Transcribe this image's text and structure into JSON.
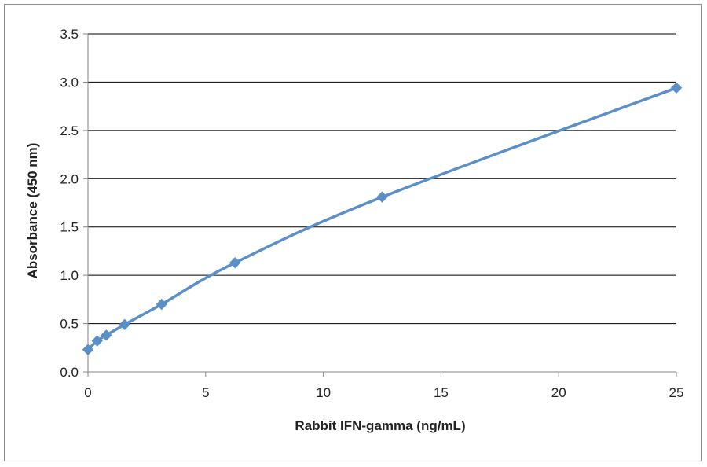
{
  "chart_data": {
    "type": "line",
    "title": "",
    "xlabel": "Rabbit IFN-gamma (ng/mL)",
    "ylabel": "Absorbance  (450 nm)",
    "xlim": [
      0,
      25
    ],
    "ylim": [
      0,
      3.5
    ],
    "x_ticks": [
      0,
      5,
      10,
      15,
      20,
      25
    ],
    "y_ticks": [
      0.0,
      0.5,
      1.0,
      1.5,
      2.0,
      2.5,
      3.0,
      3.5
    ],
    "x_tick_labels": [
      "0",
      "5",
      "10",
      "15",
      "20",
      "25"
    ],
    "y_tick_labels": [
      "0.0",
      "0.5",
      "1.0",
      "1.5",
      "2.0",
      "2.5",
      "3.0",
      "3.5"
    ],
    "grid": "horizontal",
    "legend": "none",
    "marker": "diamond",
    "line_style": "smooth",
    "series": [
      {
        "x": [
          0,
          0.39,
          0.78,
          1.56,
          3.13,
          6.25,
          12.5,
          25
        ],
        "y": [
          0.23,
          0.32,
          0.38,
          0.49,
          0.7,
          1.13,
          1.81,
          2.94
        ],
        "color": "#5b8fc7"
      }
    ]
  }
}
